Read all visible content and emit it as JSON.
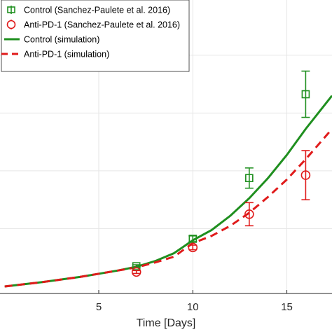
{
  "chart_data": {
    "type": "line",
    "xlabel": "Time [Days]",
    "ylabel": "",
    "xlim": [
      0,
      17.4
    ],
    "ylim": [
      0,
      1
    ],
    "grid": true,
    "legend_position": "top-left",
    "x_ticks": [
      5,
      10,
      15
    ],
    "x_tick_labels": [
      "5",
      "10",
      "15"
    ],
    "y_ticks": [
      0.2,
      0.4,
      0.6,
      0.8,
      1.0
    ],
    "series": [
      {
        "name": "Control (Sanchez-Paulete et al. 2016)",
        "kind": "data",
        "marker": "square",
        "color": "#1f8f1f",
        "x": [
          7,
          10,
          13,
          16
        ],
        "y": [
          0.07,
          0.165,
          0.375,
          0.665
        ],
        "err": [
          0.005,
          0.01,
          0.035,
          0.08
        ]
      },
      {
        "name": "Anti-PD-1 (Sanchez-Paulete et al. 2016)",
        "kind": "data",
        "marker": "circle",
        "color": "#e01b1b",
        "x": [
          7,
          10,
          13,
          16
        ],
        "y": [
          0.05,
          0.135,
          0.25,
          0.385
        ],
        "err": [
          0.005,
          0.008,
          0.04,
          0.085
        ]
      },
      {
        "name": "Control (simulation)",
        "kind": "line",
        "style": "solid",
        "color": "#1f8f1f",
        "x": [
          0,
          2,
          4,
          6,
          7,
          8,
          9,
          10,
          11,
          12,
          13,
          14,
          15,
          16,
          17.4
        ],
        "y": [
          0.0,
          0.015,
          0.033,
          0.055,
          0.068,
          0.088,
          0.115,
          0.16,
          0.195,
          0.245,
          0.305,
          0.375,
          0.455,
          0.545,
          0.66
        ]
      },
      {
        "name": "Anti-PD-1 (simulation)",
        "kind": "line",
        "style": "dashed",
        "color": "#e01b1b",
        "x": [
          0,
          2,
          4,
          6,
          7,
          8,
          9,
          10,
          11,
          12,
          13,
          14,
          15,
          16,
          17.4
        ],
        "y": [
          0.0,
          0.015,
          0.033,
          0.055,
          0.066,
          0.083,
          0.103,
          0.15,
          0.175,
          0.21,
          0.255,
          0.31,
          0.37,
          0.44,
          0.545
        ]
      }
    ]
  }
}
